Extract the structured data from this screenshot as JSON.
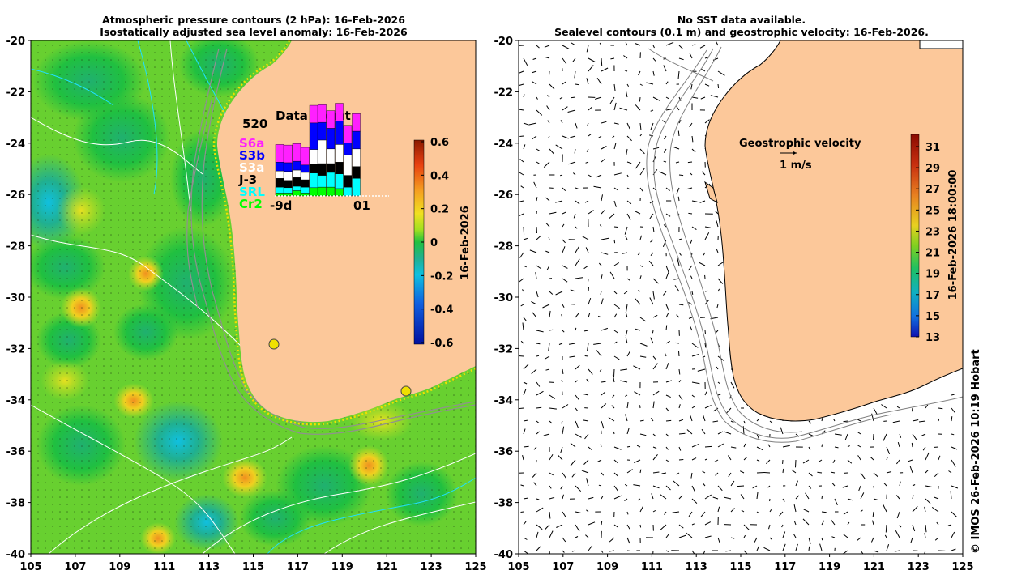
{
  "left_panel": {
    "title_line1": "Atmospheric pressure contours (2 hPa): 16-Feb-2026",
    "title_line2": "Isostatically adjusted sea level anomaly: 16-Feb-2026",
    "colorbar": {
      "label": "16-Feb-2026",
      "ticks": [
        "0.6",
        "0.4",
        "0.2",
        "0",
        "-0.2",
        "-0.4",
        "-0.6"
      ],
      "colors": [
        "#8b1a00",
        "#e84010",
        "#f5a020",
        "#f0e020",
        "#a0e020",
        "#20c040",
        "#20b090",
        "#10c0e0",
        "#1060e0",
        "#0010a0"
      ]
    },
    "data_count": {
      "title": "Data count",
      "max_label": "520",
      "xstart": "-9d",
      "xend": "01",
      "satellites": [
        {
          "name": "S6a",
          "color": "#ff20ff"
        },
        {
          "name": "S3b",
          "color": "#0000ff"
        },
        {
          "name": "S3a",
          "color": "#ffffff"
        },
        {
          "name": "J-3",
          "color": "#000000"
        },
        {
          "name": "SRL",
          "color": "#00ffff"
        },
        {
          "name": "Cr2",
          "color": "#00ff00"
        }
      ],
      "bars": [
        [
          60,
          30,
          25,
          30,
          20,
          10
        ],
        [
          60,
          30,
          30,
          25,
          18,
          10
        ],
        [
          60,
          30,
          25,
          30,
          15,
          18
        ],
        [
          60,
          25,
          25,
          25,
          20,
          10
        ],
        [
          60,
          90,
          50,
          30,
          50,
          28
        ],
        [
          60,
          60,
          80,
          40,
          40,
          30
        ],
        [
          60,
          70,
          50,
          30,
          50,
          30
        ],
        [
          60,
          80,
          60,
          40,
          50,
          25
        ],
        [
          60,
          40,
          70,
          40,
          30,
          0
        ],
        [
          60,
          60,
          60,
          40,
          60,
          0
        ]
      ]
    },
    "markers": [
      {
        "lon": 116.0,
        "lat": -31.9
      },
      {
        "lon": 121.9,
        "lat": -33.7
      }
    ]
  },
  "right_panel": {
    "title_line1": "No SST data available.",
    "title_line2": "Sealevel contours (0.1 m) and geostrophic velocity: 16-Feb-2026.",
    "velocity_legend_title": "Geostrophic velocity",
    "velocity_legend_scale": "1 m/s",
    "colorbar": {
      "label": "16-Feb-2026 18:00:00",
      "ticks": [
        "31",
        "29",
        "27",
        "25",
        "23",
        "21",
        "19",
        "17",
        "15",
        "13"
      ],
      "colors": [
        "#8b0a00",
        "#c83010",
        "#e88020",
        "#f0c020",
        "#e0e020",
        "#80d020",
        "#20c060",
        "#10b0c0",
        "#1070e0",
        "#1010b0"
      ]
    }
  },
  "axes": {
    "lon_ticks": [
      "105",
      "107",
      "109",
      "111",
      "113",
      "115",
      "117",
      "119",
      "121",
      "123",
      "125"
    ],
    "lat_ticks": [
      "-20",
      "-22",
      "-24",
      "-26",
      "-28",
      "-30",
      "-32",
      "-34",
      "-36",
      "-38",
      "-40"
    ]
  },
  "credit": "© IMOS 26-Feb-2026 10:19 Hobart",
  "colors": {
    "land": "#fcc89a",
    "ocean_base": "#60d030"
  }
}
